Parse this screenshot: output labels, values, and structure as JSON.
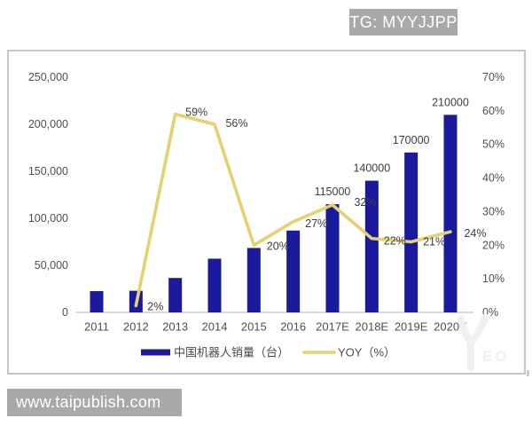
{
  "top_badge": {
    "text": "TG: MYYJJPP"
  },
  "site_badge": {
    "text": "www.taipublish.com"
  },
  "logo_watermark": {
    "text": "EO"
  },
  "colors": {
    "bar": "#1b1a9c",
    "line": "#e3d26d",
    "badge_bg": "#a9a9a9",
    "axis_text": "#4f4f4f",
    "label_text": "#3d3d3d",
    "border": "#c6c6c6"
  },
  "chart_data": {
    "type": "bar",
    "subtype": "bar-line-combo",
    "title": "",
    "categories": [
      "2011",
      "2012",
      "2013",
      "2014",
      "2015",
      "2016",
      "2017E",
      "2018E",
      "2019E",
      "2020E"
    ],
    "series": [
      {
        "name": "中国机器人销量（台）",
        "type": "bar",
        "axis": "left",
        "color": "#1b1a9c",
        "values": [
          22600,
          23000,
          36600,
          57100,
          68500,
          87000,
          115000,
          140000,
          170000,
          210000
        ],
        "value_labels": [
          null,
          null,
          null,
          null,
          null,
          null,
          "115000",
          "140000",
          "170000",
          "210000"
        ]
      },
      {
        "name": "YOY（%）",
        "type": "line",
        "axis": "right",
        "color": "#e3d26d",
        "values": [
          null,
          2,
          59,
          56,
          20,
          27,
          32,
          22,
          21,
          24
        ],
        "point_labels": [
          null,
          "2%",
          "59%",
          "56%",
          "20%",
          "27%",
          "32%",
          "22%",
          "21%",
          "24%"
        ]
      }
    ],
    "left_axis": {
      "tick_labels": [
        "250,000",
        "200,000",
        "150,000",
        "100,000",
        "50,000",
        "0"
      ],
      "tick_values": [
        250000,
        200000,
        150000,
        100000,
        50000,
        0
      ],
      "min": 0,
      "max": 250000
    },
    "right_axis": {
      "tick_labels": [
        "70%",
        "60%",
        "50%",
        "40%",
        "30%",
        "20%",
        "10%",
        "0%"
      ],
      "tick_values": [
        70,
        60,
        50,
        40,
        30,
        20,
        10,
        0
      ],
      "min": 0,
      "max": 70
    },
    "legend": [
      {
        "label": "中国机器人销量（台）",
        "swatch": "bar"
      },
      {
        "label": "YOY（%）",
        "swatch": "line"
      }
    ],
    "grid": false,
    "legend_position": "bottom"
  }
}
